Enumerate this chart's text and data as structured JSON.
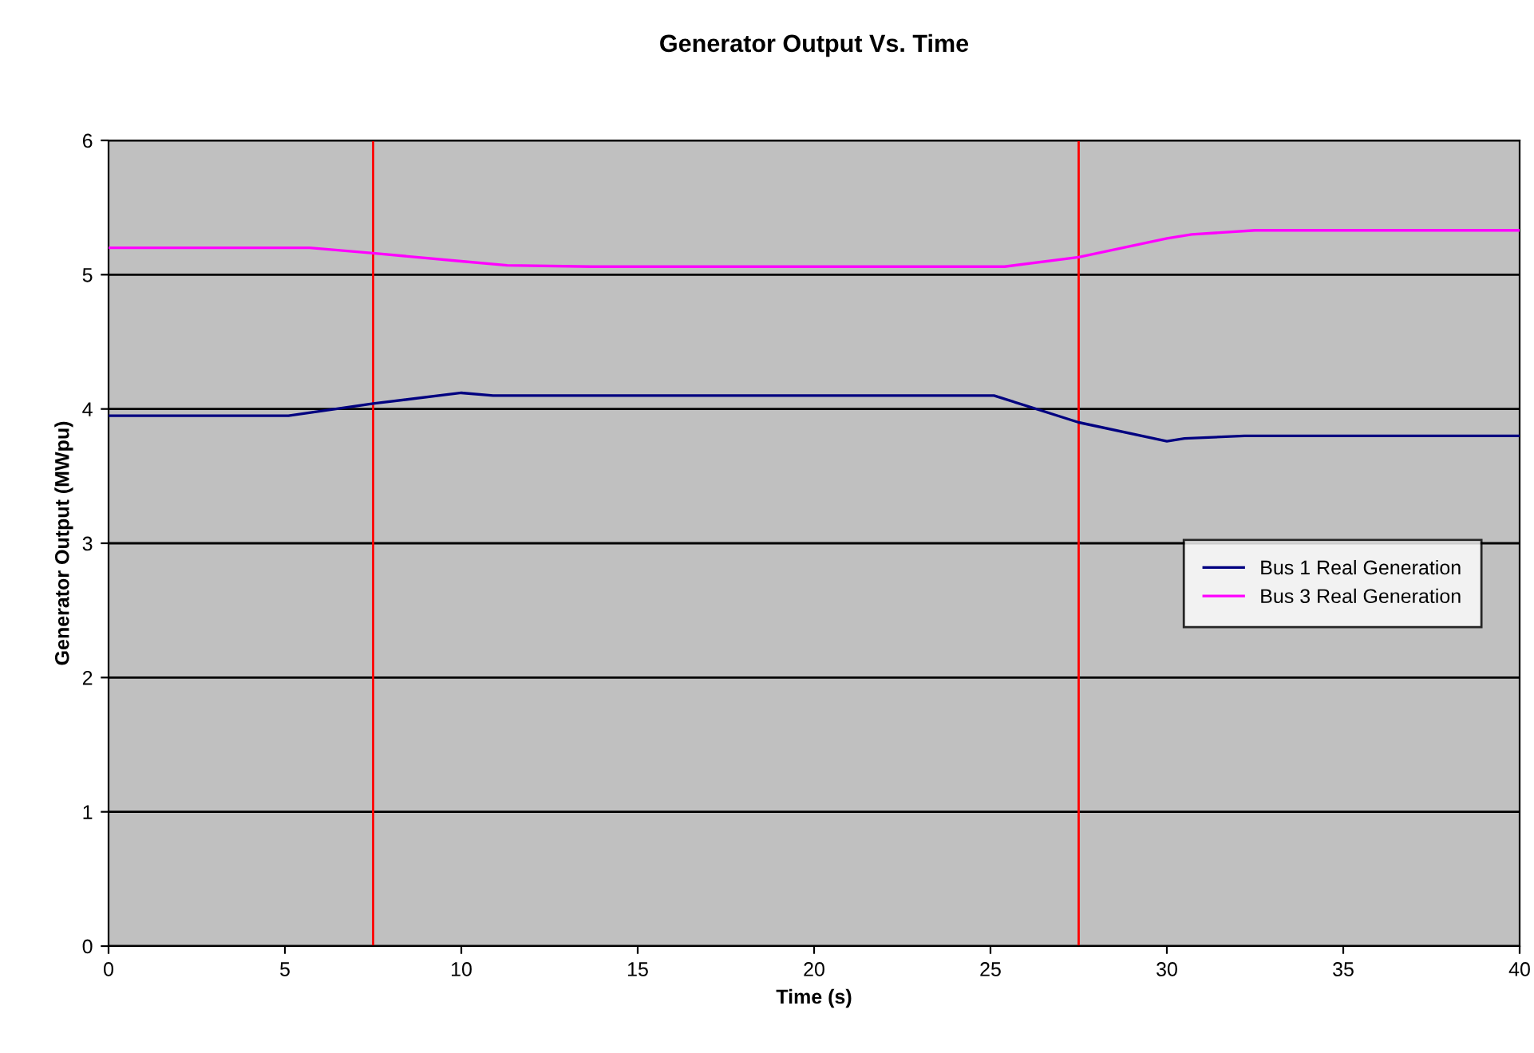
{
  "chart_data": {
    "type": "line",
    "title": "Generator Output Vs. Time",
    "xlabel": "Time (s)",
    "ylabel": "Generator Output (MWpu)",
    "xlim": [
      0,
      40
    ],
    "ylim": [
      0,
      6
    ],
    "xticks": [
      0,
      5,
      10,
      15,
      20,
      25,
      30,
      35,
      40
    ],
    "yticks": [
      0,
      1,
      2,
      3,
      4,
      5,
      6
    ],
    "grid": "y",
    "legend": "right",
    "marker": "none",
    "line_style": "solid",
    "series": [
      {
        "name": "Bus 1 Real Generation",
        "color": "#000080",
        "x": [
          0,
          5.1,
          7.5,
          10,
          10.9,
          25.1,
          27.5,
          30,
          30.5,
          32.2,
          40
        ],
        "values": [
          3.95,
          3.95,
          4.04,
          4.12,
          4.1,
          4.1,
          3.9,
          3.76,
          3.78,
          3.8,
          3.8
        ]
      },
      {
        "name": "Bus 3 Real Generation",
        "color": "#ff00ff",
        "x": [
          0,
          5.7,
          7.5,
          10,
          11.3,
          13.7,
          25.4,
          27.5,
          30,
          30.7,
          32.5,
          40
        ],
        "values": [
          5.2,
          5.2,
          5.16,
          5.1,
          5.07,
          5.06,
          5.06,
          5.13,
          5.27,
          5.3,
          5.33,
          5.33
        ]
      }
    ],
    "ref_lines": [
      {
        "axis": "x",
        "value": 7.5,
        "color": "#ff0000"
      },
      {
        "axis": "x",
        "value": 27.5,
        "color": "#ff0000"
      }
    ]
  }
}
